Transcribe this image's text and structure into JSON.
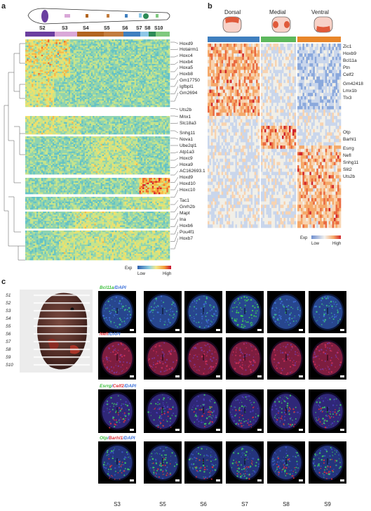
{
  "panel_a": {
    "label": "a",
    "sections": [
      "S2",
      "S3",
      "S4",
      "S5",
      "S6",
      "S7",
      "S8",
      "S10"
    ],
    "section_colors": [
      "#6b3fa0",
      "#d9a8d8",
      "#b2651f",
      "#c27c3e",
      "#3f7fbf",
      "#8ec8e8",
      "#2e8b57",
      "#7fc97f"
    ],
    "genes": [
      "Hoxd9",
      "Hotairm1",
      "Hoxc4",
      "Hoxb4",
      "Hoxa5",
      "Hoxb8",
      "Gm17750",
      "Igfbpl1",
      "Gm2694",
      "Uts2b",
      "Mnx1",
      "Slc18a3",
      "Snhg11",
      "Nova1",
      "Ube2ql1",
      "Atp1a3",
      "Hoxc9",
      "Hoxa9",
      "AC162693.1",
      "Hoxd9",
      "Hoxd10",
      "Hoxc10",
      "Tac1",
      "Gnrh2b",
      "Mapt",
      "Ina",
      "Hoxb6",
      "Pou4f1",
      "Hoxb7"
    ],
    "legend": {
      "title": "Exp",
      "low": "Low",
      "high": "High"
    }
  },
  "panel_b": {
    "label": "b",
    "groups": [
      "Dorsal",
      "Medial",
      "Ventral"
    ],
    "group_colors": [
      "#3f7fbf",
      "#5cb85c",
      "#e8862a"
    ],
    "genes": [
      "Zic1",
      "Hoxb9",
      "Bcl11a",
      "Ptn",
      "Celf2",
      "Gm42418",
      "Lmx1b",
      "Tlx3",
      "Otp",
      "Barhl1",
      "Esrrg",
      "Nefl",
      "Snhg11",
      "Slit2",
      "Uts2b"
    ],
    "legend": {
      "title": "Exp",
      "low": "Low",
      "high": "High"
    }
  },
  "panel_c": {
    "label": "c",
    "embryo_sections": [
      "S1",
      "S2",
      "S3",
      "S4",
      "S5",
      "S6",
      "S7",
      "S8",
      "S9",
      "S10"
    ],
    "rows": [
      {
        "parts": [
          {
            "text": "Bcl11a",
            "color": "#3fbf3f"
          },
          {
            "text": "/DAPI",
            "color": "#3a6fd8"
          }
        ]
      },
      {
        "parts": [
          {
            "text": "Nefl",
            "color": "#e0303a"
          },
          {
            "text": "/DAPI",
            "color": "#3a6fd8"
          }
        ]
      },
      {
        "parts": [
          {
            "text": "Esrrg",
            "color": "#3fbf3f"
          },
          {
            "text": "/",
            "color": "#3a6fd8"
          },
          {
            "text": "Celf2",
            "color": "#e0303a"
          },
          {
            "text": "/DAPI",
            "color": "#3a6fd8"
          }
        ]
      },
      {
        "parts": [
          {
            "text": "Otp",
            "color": "#3fbf3f"
          },
          {
            "text": "/",
            "color": "#3a6fd8"
          },
          {
            "text": "Barhl1",
            "color": "#e0303a"
          },
          {
            "text": "/DAPI",
            "color": "#3a6fd8"
          }
        ]
      }
    ],
    "columns": [
      "S3",
      "S5",
      "S6",
      "S7",
      "S8",
      "S9"
    ]
  }
}
